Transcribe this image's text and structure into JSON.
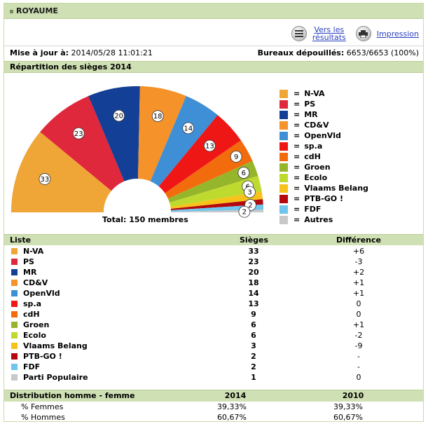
{
  "header": {
    "title": "ROYAUME"
  },
  "tools": {
    "results_label_line1": "Vers les",
    "results_label_line2": "résultats",
    "print_label": "Impression"
  },
  "info": {
    "update_label": "Mise à jour à:",
    "update_value": "2014/05/28 11:01:21",
    "bureaux_label": "Bureaux dépouillés:",
    "bureaux_value": "6653/6653 (100%)"
  },
  "chart_section": {
    "title": "Répartition des sièges 2014",
    "total_label": "Total: 150 membres"
  },
  "chart_data": {
    "type": "pie",
    "subtype": "half-donut (parliament)",
    "title": "Répartition des sièges 2014",
    "total": 150,
    "categories": [
      "N-VA",
      "PS",
      "MR",
      "CD&V",
      "OpenVld",
      "sp.a",
      "cdH",
      "Groen",
      "Ecolo",
      "Vlaams Belang",
      "PTB-GO !",
      "FDF",
      "Autres"
    ],
    "values": [
      33,
      23,
      20,
      18,
      14,
      13,
      9,
      6,
      6,
      3,
      2,
      2,
      1
    ],
    "colors": [
      "#f0a637",
      "#e0283c",
      "#143f96",
      "#f5922a",
      "#3e8fd6",
      "#ef1616",
      "#f26c0e",
      "#95b52b",
      "#bfda2f",
      "#f7c31a",
      "#b3090f",
      "#6ec6ee",
      "#c8c8c8"
    ],
    "label_values": [
      "33",
      "23",
      "20",
      "18",
      "14",
      "13",
      "9",
      "6",
      "6",
      "3",
      "2",
      "2"
    ],
    "legend_position": "right"
  },
  "legend": [
    {
      "label": "N-VA",
      "color": "#f0a637"
    },
    {
      "label": "PS",
      "color": "#e0283c"
    },
    {
      "label": "MR",
      "color": "#143f96"
    },
    {
      "label": "CD&V",
      "color": "#f5922a"
    },
    {
      "label": "OpenVld",
      "color": "#3e8fd6"
    },
    {
      "label": "sp.a",
      "color": "#ef1616"
    },
    {
      "label": "cdH",
      "color": "#f26c0e"
    },
    {
      "label": "Groen",
      "color": "#95b52b"
    },
    {
      "label": "Ecolo",
      "color": "#bfda2f"
    },
    {
      "label": "Vlaams Belang",
      "color": "#f7c31a"
    },
    {
      "label": "PTB-GO !",
      "color": "#b3090f"
    },
    {
      "label": "FDF",
      "color": "#6ec6ee"
    },
    {
      "label": "Autres",
      "color": "#c8c8c8"
    }
  ],
  "legend_eq": "=",
  "table": {
    "headers": {
      "list": "Liste",
      "seats": "Sièges",
      "diff": "Différence"
    },
    "rows": [
      {
        "name": "N-VA",
        "seats": "33",
        "diff": "+6",
        "color": "#f0a637"
      },
      {
        "name": "PS",
        "seats": "23",
        "diff": "-3",
        "color": "#e0283c"
      },
      {
        "name": "MR",
        "seats": "20",
        "diff": "+2",
        "color": "#143f96"
      },
      {
        "name": "CD&V",
        "seats": "18",
        "diff": "+1",
        "color": "#f5922a"
      },
      {
        "name": "OpenVld",
        "seats": "14",
        "diff": "+1",
        "color": "#3e8fd6"
      },
      {
        "name": "sp.a",
        "seats": "13",
        "diff": "0",
        "color": "#ef1616"
      },
      {
        "name": "cdH",
        "seats": "9",
        "diff": "0",
        "color": "#f26c0e"
      },
      {
        "name": "Groen",
        "seats": "6",
        "diff": "+1",
        "color": "#95b52b"
      },
      {
        "name": "Ecolo",
        "seats": "6",
        "diff": "-2",
        "color": "#bfda2f"
      },
      {
        "name": "Vlaams Belang",
        "seats": "3",
        "diff": "-9",
        "color": "#f7c31a"
      },
      {
        "name": "PTB-GO !",
        "seats": "2",
        "diff": "-",
        "color": "#b3090f"
      },
      {
        "name": "FDF",
        "seats": "2",
        "diff": "-",
        "color": "#6ec6ee"
      },
      {
        "name": "Parti Populaire",
        "seats": "1",
        "diff": "0",
        "color": "#c8c8c8"
      }
    ]
  },
  "distribution": {
    "title": "Distribution homme - femme",
    "year1": "2014",
    "year2": "2010",
    "rows": [
      {
        "label": "% Femmes",
        "v1": "39,33%",
        "v2": "39,33%"
      },
      {
        "label": "% Hommes",
        "v1": "60,67%",
        "v2": "60,67%"
      }
    ]
  }
}
